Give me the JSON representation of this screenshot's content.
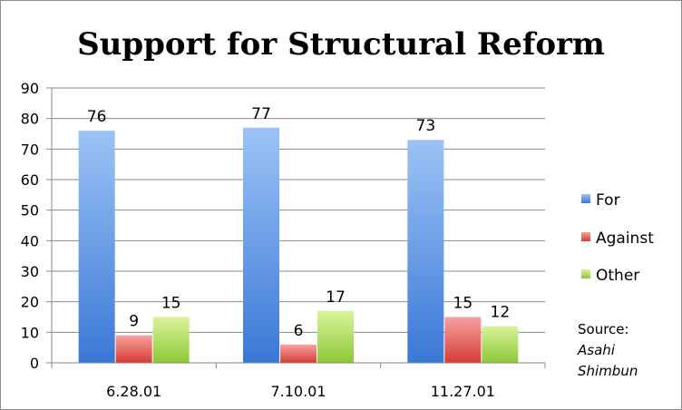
{
  "chart_data": {
    "type": "bar",
    "title": "Support for Structural Reform",
    "categories": [
      "6.28.01",
      "7.10.01",
      "11.27.01"
    ],
    "series": [
      {
        "name": "For",
        "values": [
          76,
          77,
          73
        ],
        "color_top": "#9cc3f5",
        "color_bottom": "#3a78d6"
      },
      {
        "name": "Against",
        "values": [
          9,
          6,
          15
        ],
        "color_top": "#f5a3a0",
        "color_bottom": "#d73a35"
      },
      {
        "name": "Other",
        "values": [
          15,
          17,
          12
        ],
        "color_top": "#d9f39a",
        "color_bottom": "#8cc838"
      }
    ],
    "ylim": [
      0,
      90
    ],
    "yticks": [
      0,
      10,
      20,
      30,
      40,
      50,
      60,
      70,
      80,
      90
    ],
    "grid": true,
    "legend_position": "right",
    "data_labels": true
  },
  "source": {
    "label": "Source:",
    "line1": "Asahi",
    "line2": "Shimbun"
  }
}
